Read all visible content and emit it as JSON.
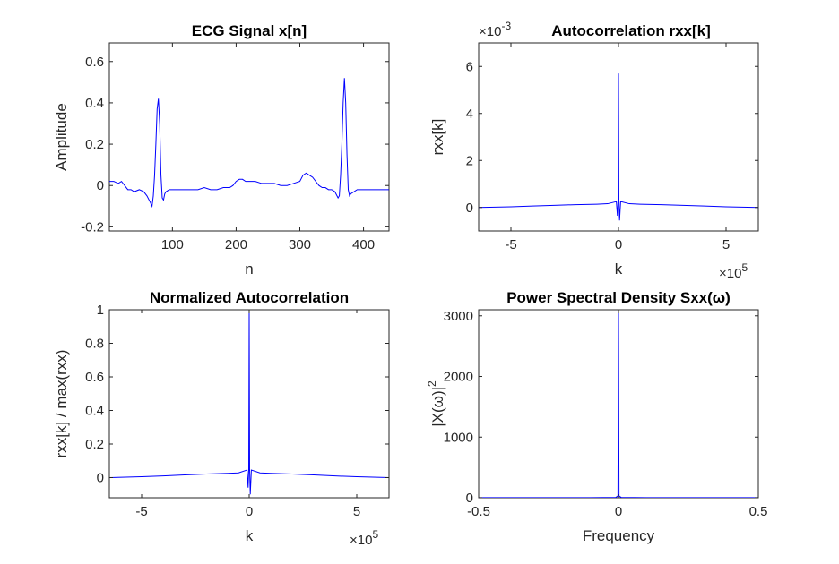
{
  "chart_data": [
    {
      "type": "line",
      "title": "ECG Signal x[n]",
      "xlabel": "n",
      "ylabel": "Amplitude",
      "xlim": [
        1,
        440
      ],
      "ylim": [
        -0.22,
        0.69
      ],
      "xticks": [
        100,
        200,
        300,
        400
      ],
      "xtick_labels": [
        "100",
        "200",
        "300",
        "400"
      ],
      "yticks": [
        -0.2,
        0,
        0.2,
        0.4,
        0.6
      ],
      "ytick_labels": [
        "-0.2",
        "0",
        "0.2",
        "0.4",
        "0.6"
      ],
      "grid": false,
      "series_color": "#0000ff",
      "series": [
        {
          "x": [
            1,
            8,
            15,
            20,
            25,
            30,
            35,
            40,
            48,
            55,
            60,
            65,
            68,
            70,
            72,
            74,
            76,
            78,
            80,
            82,
            84,
            86,
            88,
            90,
            95,
            100,
            110,
            120,
            130,
            140,
            150,
            160,
            170,
            180,
            190,
            195,
            200,
            205,
            210,
            215,
            220,
            230,
            240,
            250,
            260,
            270,
            280,
            290,
            300,
            305,
            310,
            315,
            320,
            325,
            330,
            335,
            340,
            345,
            350,
            355,
            360,
            362,
            364,
            366,
            368,
            370,
            372,
            374,
            376,
            378,
            380,
            385,
            390,
            400,
            410,
            420,
            430,
            440
          ],
          "y": [
            0.02,
            0.02,
            0.01,
            0.02,
            0.0,
            -0.02,
            -0.02,
            -0.03,
            -0.02,
            -0.03,
            -0.05,
            -0.08,
            -0.1,
            -0.05,
            0.05,
            0.2,
            0.37,
            0.42,
            0.3,
            0.05,
            -0.06,
            -0.07,
            -0.04,
            -0.03,
            -0.02,
            -0.02,
            -0.02,
            -0.02,
            -0.02,
            -0.02,
            -0.01,
            -0.02,
            -0.02,
            -0.01,
            -0.01,
            0.0,
            0.02,
            0.03,
            0.03,
            0.02,
            0.02,
            0.02,
            0.01,
            0.01,
            0.01,
            0.0,
            0.0,
            0.01,
            0.02,
            0.05,
            0.06,
            0.05,
            0.04,
            0.02,
            0.0,
            -0.01,
            -0.01,
            -0.02,
            -0.02,
            -0.03,
            -0.06,
            -0.05,
            0.05,
            0.2,
            0.4,
            0.52,
            0.4,
            0.15,
            -0.02,
            -0.05,
            -0.04,
            -0.03,
            -0.02,
            -0.02,
            -0.02,
            -0.02,
            -0.02,
            -0.02
          ]
        }
      ]
    },
    {
      "type": "line",
      "title": "Autocorrelation rxx[k]",
      "xlabel": "k",
      "ylabel": "rxx[k]",
      "x_multiplier": "×10",
      "x_exponent": "5",
      "y_multiplier": "×10",
      "y_exponent": "-3",
      "xlim": [
        -6.5,
        6.5
      ],
      "ylim": [
        -1.0,
        7.0
      ],
      "xticks": [
        -5,
        0,
        5
      ],
      "xtick_labels": [
        "-5",
        "0",
        "5"
      ],
      "yticks": [
        0,
        2,
        4,
        6
      ],
      "ytick_labels": [
        "0",
        "2",
        "4",
        "6"
      ],
      "grid": false,
      "series_color": "#0000ff",
      "series": [
        {
          "x": [
            -6.5,
            -5,
            -4,
            -3,
            -2,
            -1,
            -0.5,
            -0.1,
            -0.05,
            -0.02,
            0,
            0.02,
            0.05,
            0.1,
            0.5,
            1,
            2,
            3,
            4,
            5,
            6.5
          ],
          "y": [
            0.0,
            0.03,
            0.06,
            0.09,
            0.12,
            0.14,
            0.16,
            0.25,
            -0.35,
            0.3,
            5.7,
            0.3,
            -0.55,
            0.25,
            0.16,
            0.14,
            0.12,
            0.09,
            0.06,
            0.03,
            0.0
          ]
        }
      ]
    },
    {
      "type": "line",
      "title": "Normalized Autocorrelation",
      "xlabel": "k",
      "ylabel": "rxx[k] / max(rxx)",
      "x_multiplier": "×10",
      "x_exponent": "5",
      "xlim": [
        -6.5,
        6.5
      ],
      "ylim": [
        -0.12,
        1.0
      ],
      "xticks": [
        -5,
        0,
        5
      ],
      "xtick_labels": [
        "-5",
        "0",
        "5"
      ],
      "yticks": [
        0,
        0.2,
        0.4,
        0.6,
        0.8,
        1
      ],
      "ytick_labels": [
        "0",
        "0.2",
        "0.4",
        "0.6",
        "0.8",
        "1"
      ],
      "grid": false,
      "series_color": "#0000ff",
      "series": [
        {
          "x": [
            -6.5,
            -5,
            -4,
            -3,
            -2,
            -1,
            -0.5,
            -0.1,
            -0.05,
            -0.02,
            0,
            0.02,
            0.05,
            0.1,
            0.5,
            1,
            2,
            3,
            4,
            5,
            6.5
          ],
          "y": [
            0.0,
            0.005,
            0.01,
            0.016,
            0.021,
            0.025,
            0.028,
            0.045,
            -0.06,
            0.05,
            1.0,
            0.05,
            -0.1,
            0.045,
            0.028,
            0.025,
            0.021,
            0.016,
            0.01,
            0.005,
            0.0
          ]
        }
      ]
    },
    {
      "type": "line",
      "title": "Power Spectral Density Sxx(ω)",
      "xlabel": "Frequency",
      "ylabel": "|X(ω)|",
      "ylabel_superscript": "2",
      "xlim": [
        -0.5,
        0.5
      ],
      "ylim": [
        0,
        3100
      ],
      "xticks": [
        -0.5,
        0,
        0.5
      ],
      "xtick_labels": [
        "-0.5",
        "0",
        "0.5"
      ],
      "yticks": [
        0,
        1000,
        2000,
        3000
      ],
      "ytick_labels": [
        "0",
        "1000",
        "2000",
        "3000"
      ],
      "grid": false,
      "series_color": "#0000ff",
      "series": [
        {
          "x": [
            -0.5,
            -0.3,
            -0.1,
            -0.01,
            -0.002,
            0,
            0.002,
            0.01,
            0.1,
            0.3,
            0.5
          ],
          "y": [
            1,
            1,
            2,
            5,
            30,
            3100,
            30,
            5,
            2,
            1,
            1
          ]
        }
      ]
    }
  ]
}
